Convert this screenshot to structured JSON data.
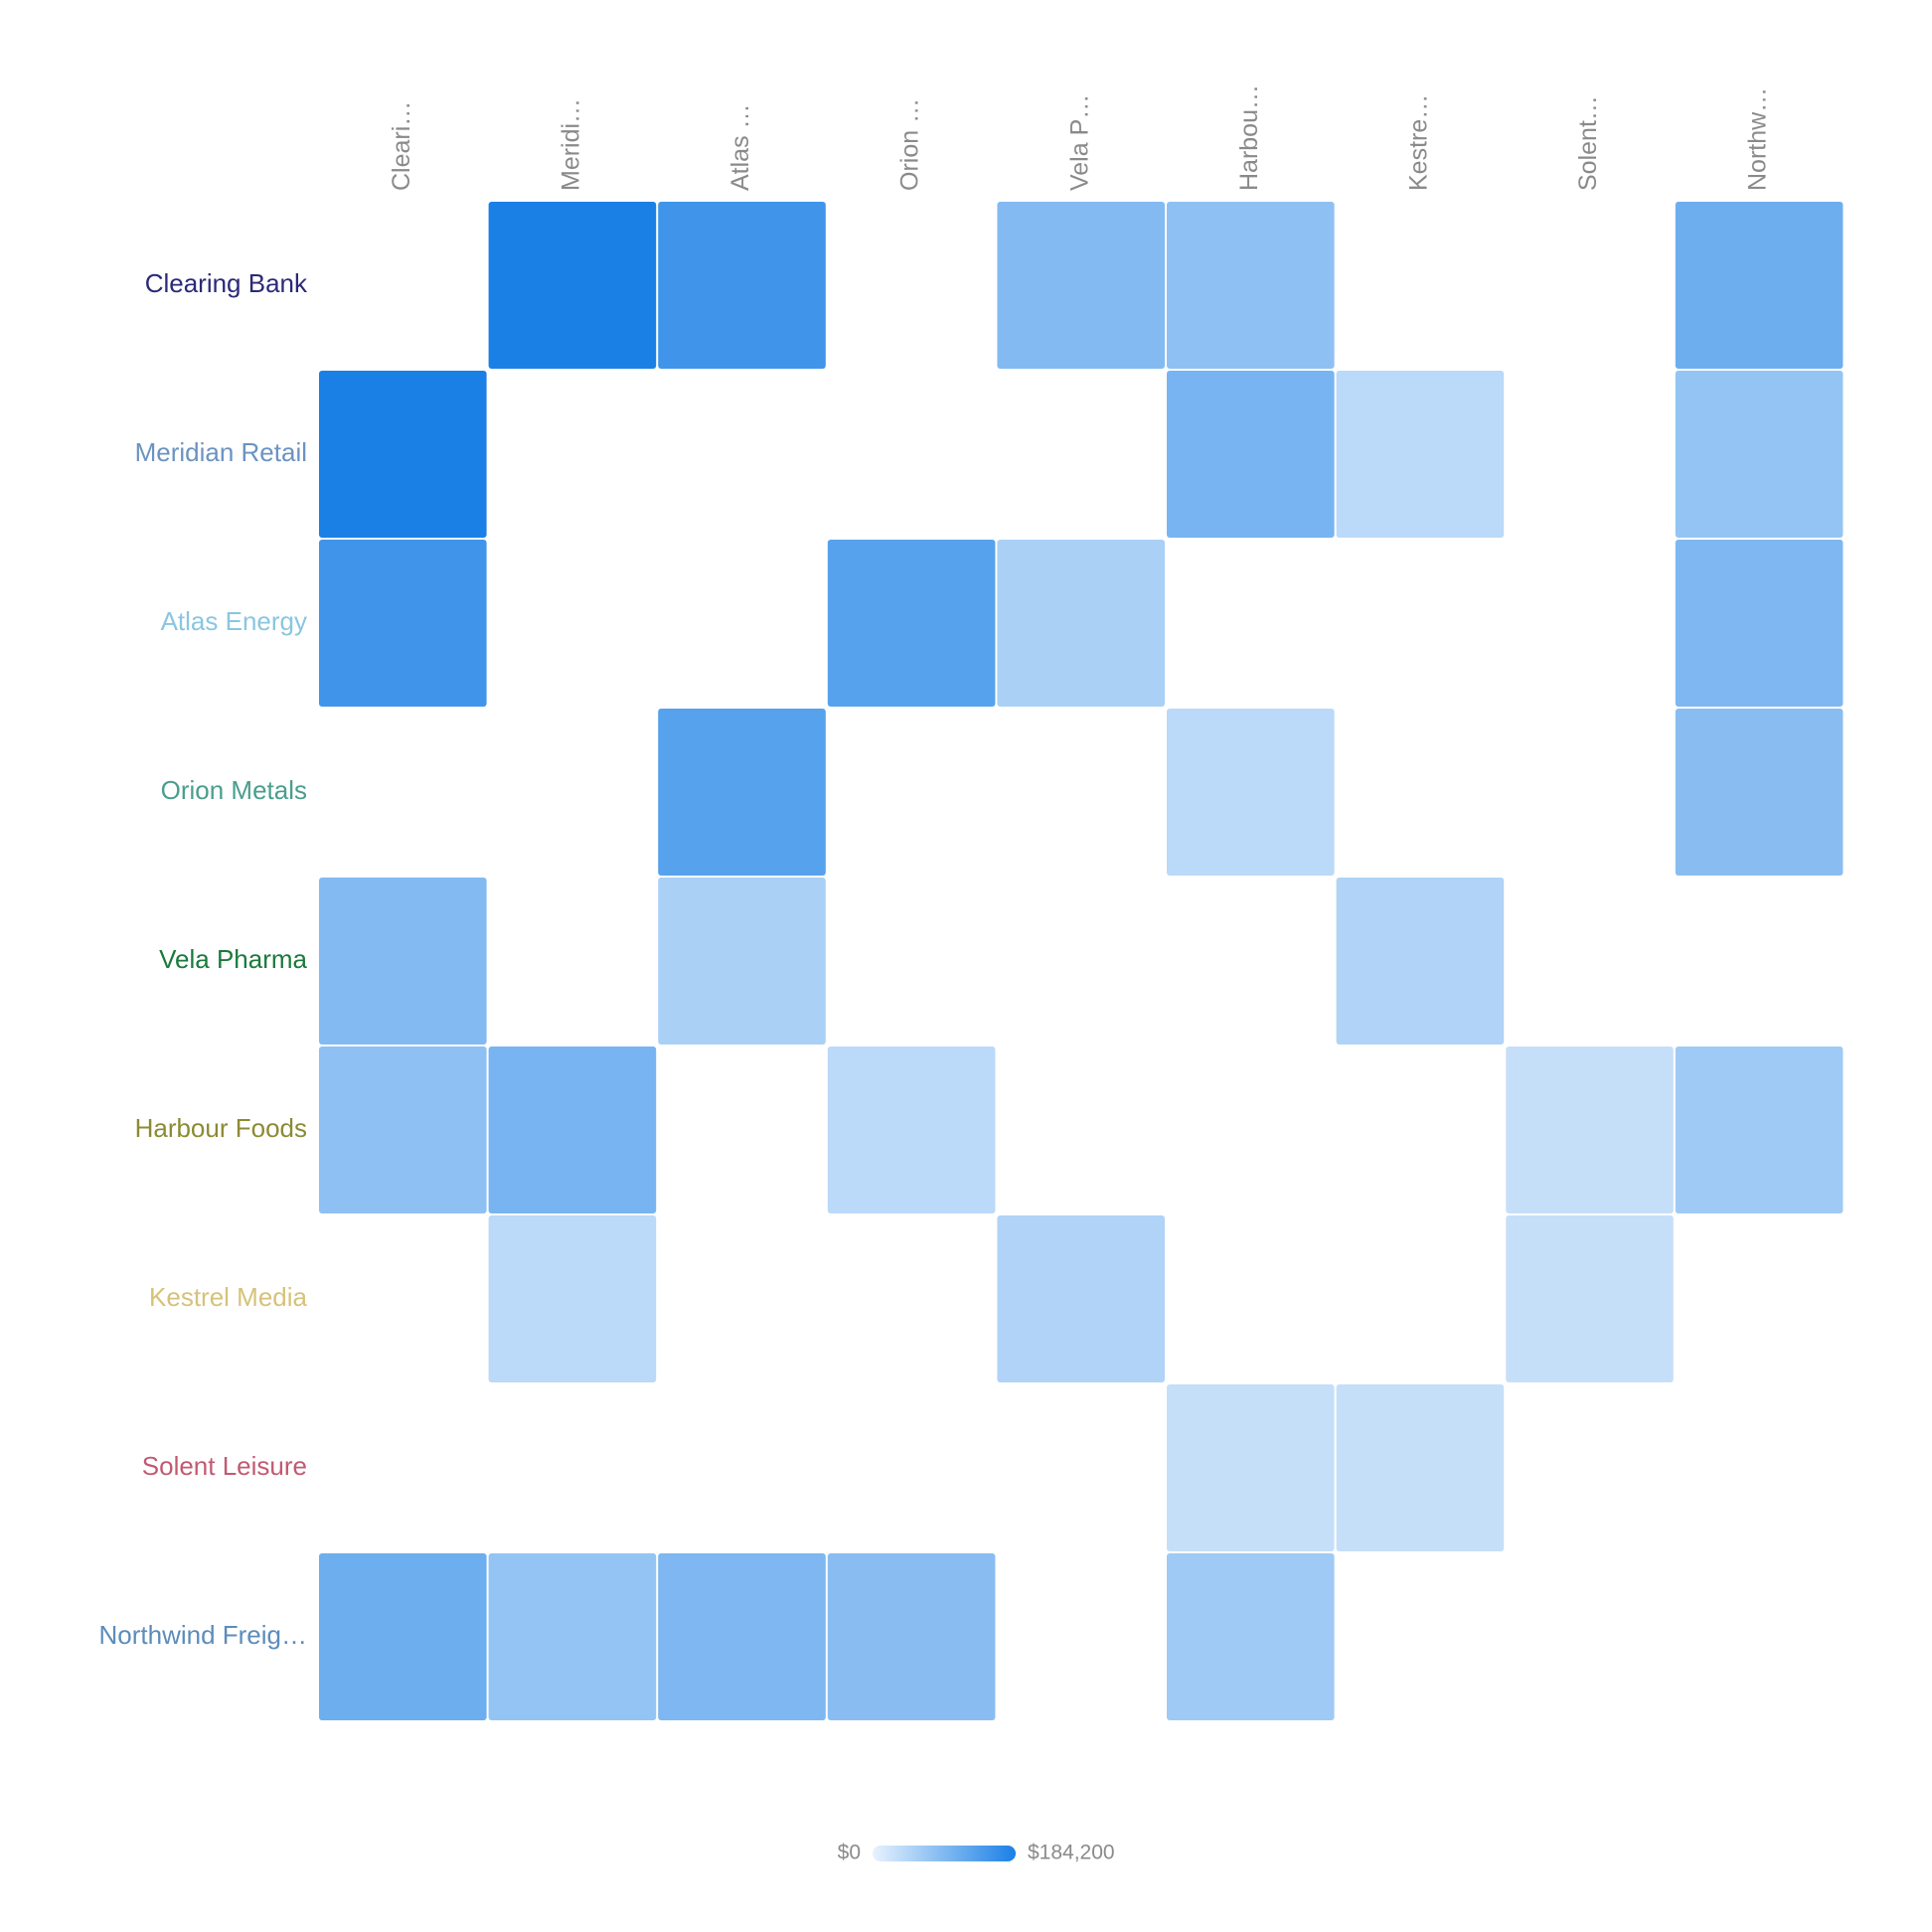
{
  "chart_data": {
    "type": "heatmap",
    "rows": [
      "Clearing Bank",
      "Meridian Retail",
      "Atlas Energy",
      "Orion Metals",
      "Vela Pharma",
      "Harbour Foods",
      "Kestrel Media",
      "Solent Leisure",
      "Northwind Freig…"
    ],
    "row_label_colors": [
      "#2b2a78",
      "#6b93c2",
      "#8ac6e0",
      "#4a9e8e",
      "#1b7a3c",
      "#8c8b32",
      "#d6c27a",
      "#c25a72",
      "#5c8cba"
    ],
    "columns": [
      "Cleari…",
      "Meridi…",
      "Atlas …",
      "Orion …",
      "Vela P…",
      "Harbou…",
      "Kestre…",
      "Solent…",
      "Northw…"
    ],
    "column_label_color": "#8a8a8a",
    "values": [
      [
        null,
        184200,
        150000,
        null,
        90000,
        80000,
        null,
        null,
        110000
      ],
      [
        184200,
        null,
        null,
        null,
        null,
        100000,
        40000,
        null,
        75000
      ],
      [
        150000,
        null,
        null,
        130000,
        55000,
        null,
        null,
        null,
        95000
      ],
      [
        null,
        null,
        130000,
        null,
        null,
        40000,
        null,
        null,
        85000
      ],
      [
        90000,
        null,
        55000,
        null,
        null,
        null,
        50000,
        null,
        null
      ],
      [
        80000,
        100000,
        null,
        40000,
        null,
        null,
        null,
        30000,
        65000
      ],
      [
        null,
        40000,
        null,
        null,
        50000,
        null,
        null,
        30000,
        null
      ],
      [
        null,
        null,
        null,
        null,
        null,
        30000,
        30000,
        null,
        null
      ],
      [
        110000,
        75000,
        95000,
        85000,
        null,
        65000,
        null,
        null,
        null
      ]
    ],
    "colorscale": [
      "#e8f2fd",
      "#1a80e6"
    ],
    "zlim": [
      0,
      184200
    ],
    "zticks": [
      {
        "value": 0,
        "label": "$0"
      },
      {
        "value": 184200,
        "label": "$184,200"
      }
    ]
  }
}
